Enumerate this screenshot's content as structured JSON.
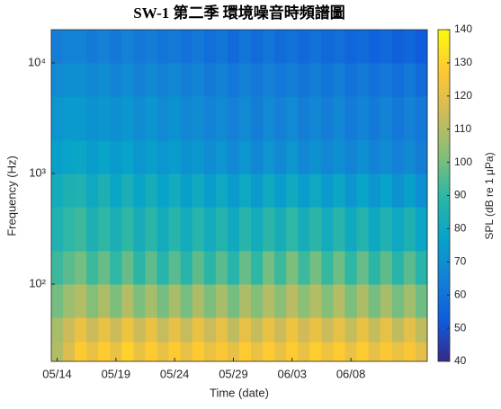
{
  "chart_data": {
    "type": "heatmap",
    "title": "SW-1 第二季 環境噪音時頻譜圖",
    "xlabel": "Time (date)",
    "ylabel": "Frequency (Hz)",
    "colorbar_label": "SPL (dB re 1 μPa)",
    "categories": [
      "05/14",
      null,
      null,
      null,
      null,
      "05/19",
      null,
      null,
      null,
      null,
      "05/24",
      null,
      null,
      null,
      null,
      "05/29",
      null,
      null,
      null,
      null,
      "06/03",
      null,
      null,
      null,
      null,
      "06/08",
      null,
      null,
      null,
      null,
      null,
      null
    ],
    "frequency_edges": [
      20,
      30,
      50,
      100,
      200,
      500,
      1000,
      2000,
      5000,
      10000,
      20000
    ],
    "log_y": true,
    "ylim": [
      20,
      20000
    ],
    "yticks": [
      {
        "value": 100,
        "label": "10²"
      },
      {
        "value": 1000,
        "label": "10³"
      },
      {
        "value": 10000,
        "label": "10⁴"
      }
    ],
    "clim": [
      40,
      140
    ],
    "cticks": [
      40,
      50,
      60,
      70,
      80,
      90,
      100,
      110,
      120,
      130,
      140
    ],
    "colormap": [
      "#352a87",
      "#0f5cdd",
      "#1481d6",
      "#06a4ca",
      "#2eb7a4",
      "#87bf77",
      "#d1bb59",
      "#fec832",
      "#f9fb0e"
    ],
    "z": [
      [
        110,
        118,
        128,
        122,
        128,
        122,
        130,
        122,
        128,
        122,
        128,
        121,
        128,
        122,
        127,
        121,
        128,
        122,
        128,
        122,
        128,
        122,
        129,
        123,
        128,
        122,
        128,
        121,
        127,
        122,
        126,
        120
      ],
      [
        108,
        114,
        122,
        114,
        122,
        114,
        123,
        114,
        122,
        113,
        121,
        113,
        122,
        114,
        121,
        112,
        121,
        113,
        122,
        114,
        123,
        115,
        122,
        114,
        121,
        113,
        122,
        113,
        121,
        112,
        120,
        112
      ],
      [
        100,
        106,
        110,
        102,
        109,
        101,
        110,
        101,
        108,
        100,
        108,
        100,
        109,
        101,
        108,
        100,
        109,
        102,
        110,
        103,
        111,
        103,
        110,
        102,
        110,
        101,
        109,
        100,
        108,
        100,
        107,
        99
      ],
      [
        92,
        96,
        100,
        92,
        98,
        90,
        98,
        89,
        97,
        88,
        96,
        88,
        97,
        89,
        96,
        88,
        98,
        90,
        100,
        92,
        101,
        92,
        100,
        91,
        99,
        90,
        98,
        89,
        97,
        88,
        96,
        88
      ],
      [
        86,
        90,
        92,
        85,
        90,
        84,
        90,
        83,
        89,
        82,
        88,
        82,
        88,
        82,
        87,
        81,
        88,
        82,
        89,
        83,
        90,
        83,
        89,
        82,
        88,
        81,
        87,
        80,
        86,
        80,
        85,
        79
      ],
      [
        82,
        85,
        86,
        80,
        85,
        79,
        84,
        78,
        83,
        77,
        82,
        76,
        81,
        75,
        80,
        74,
        80,
        74,
        81,
        75,
        81,
        75,
        80,
        74,
        79,
        73,
        78,
        72,
        77,
        71,
        76,
        70
      ],
      [
        76,
        78,
        79,
        75,
        78,
        74,
        77,
        73,
        76,
        72,
        75,
        71,
        73,
        69,
        72,
        68,
        72,
        67,
        72,
        68,
        72,
        67,
        71,
        67,
        70,
        66,
        70,
        66,
        69,
        65,
        68,
        64
      ],
      [
        72,
        74,
        74,
        71,
        73,
        70,
        73,
        69,
        72,
        68,
        71,
        67,
        69,
        66,
        68,
        65,
        68,
        64,
        68,
        65,
        68,
        64,
        67,
        64,
        67,
        63,
        66,
        63,
        66,
        62,
        65,
        62
      ],
      [
        68,
        70,
        70,
        67,
        69,
        66,
        69,
        65,
        68,
        65,
        67,
        64,
        66,
        63,
        65,
        62,
        65,
        62,
        65,
        62,
        64,
        61,
        64,
        61,
        64,
        60,
        63,
        60,
        62,
        59,
        62,
        58
      ],
      [
        64,
        66,
        66,
        63,
        65,
        62,
        65,
        62,
        64,
        61,
        63,
        60,
        62,
        59,
        61,
        58,
        61,
        58,
        61,
        58,
        60,
        57,
        60,
        57,
        59,
        56,
        58,
        55,
        57,
        54,
        56,
        53
      ]
    ]
  }
}
